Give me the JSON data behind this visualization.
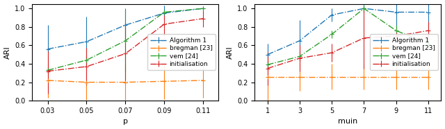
{
  "plot1": {
    "xlabel": "p",
    "ylabel": "ARI",
    "x": [
      0.03,
      0.05,
      0.07,
      0.09,
      0.11
    ],
    "algo1_mean": [
      0.56,
      0.64,
      0.82,
      0.95,
      1.0
    ],
    "algo1_err": [
      0.26,
      0.27,
      0.18,
      0.08,
      0.005
    ],
    "bregman_mean": [
      0.22,
      0.2,
      0.2,
      0.21,
      0.22
    ],
    "bregman_err": [
      0.19,
      0.19,
      0.19,
      0.19,
      0.19
    ],
    "vem_mean": [
      0.33,
      0.44,
      0.65,
      0.96,
      1.0
    ],
    "vem_err": [
      0.03,
      0.04,
      0.34,
      0.03,
      0.005
    ],
    "init_mean": [
      0.32,
      0.37,
      0.51,
      0.83,
      0.89
    ],
    "init_err": [
      0.24,
      0.2,
      0.3,
      0.13,
      0.09
    ],
    "xticks": [
      0.03,
      0.05,
      0.07,
      0.09,
      0.11
    ],
    "ylim": [
      0.0,
      1.05
    ]
  },
  "plot2": {
    "xlabel": "muin",
    "ylabel": "ARI",
    "x": [
      1,
      3,
      5,
      7,
      9,
      11
    ],
    "algo1_mean": [
      0.5,
      0.65,
      0.93,
      1.0,
      0.96,
      0.96
    ],
    "algo1_err": [
      0.12,
      0.22,
      0.07,
      0.04,
      0.18,
      0.18
    ],
    "bregman_mean": [
      0.26,
      0.26,
      0.26,
      0.26,
      0.26,
      0.26
    ],
    "bregman_err": [
      0.27,
      0.15,
      0.14,
      0.14,
      0.14,
      0.14
    ],
    "vem_mean": [
      0.39,
      0.48,
      0.72,
      1.0,
      0.76,
      0.62
    ],
    "vem_err": [
      0.04,
      0.06,
      0.04,
      0.04,
      0.06,
      0.06
    ],
    "init_mean": [
      0.35,
      0.46,
      0.52,
      0.68,
      0.7,
      0.76
    ],
    "init_err": [
      0.18,
      0.14,
      0.1,
      0.33,
      0.06,
      0.1
    ],
    "xticks": [
      1,
      3,
      5,
      7,
      9,
      11
    ],
    "ylim": [
      0.0,
      1.05
    ]
  },
  "colors": {
    "algo1": "#1f77b4",
    "bregman": "#ff7f0e",
    "vem": "#2ca02c",
    "init": "#d62728"
  },
  "legend_labels": [
    "Algorithm 1",
    "bregman [23]",
    "vem [24]",
    "initialisation"
  ],
  "figsize": [
    6.4,
    1.86
  ],
  "dpi": 100
}
